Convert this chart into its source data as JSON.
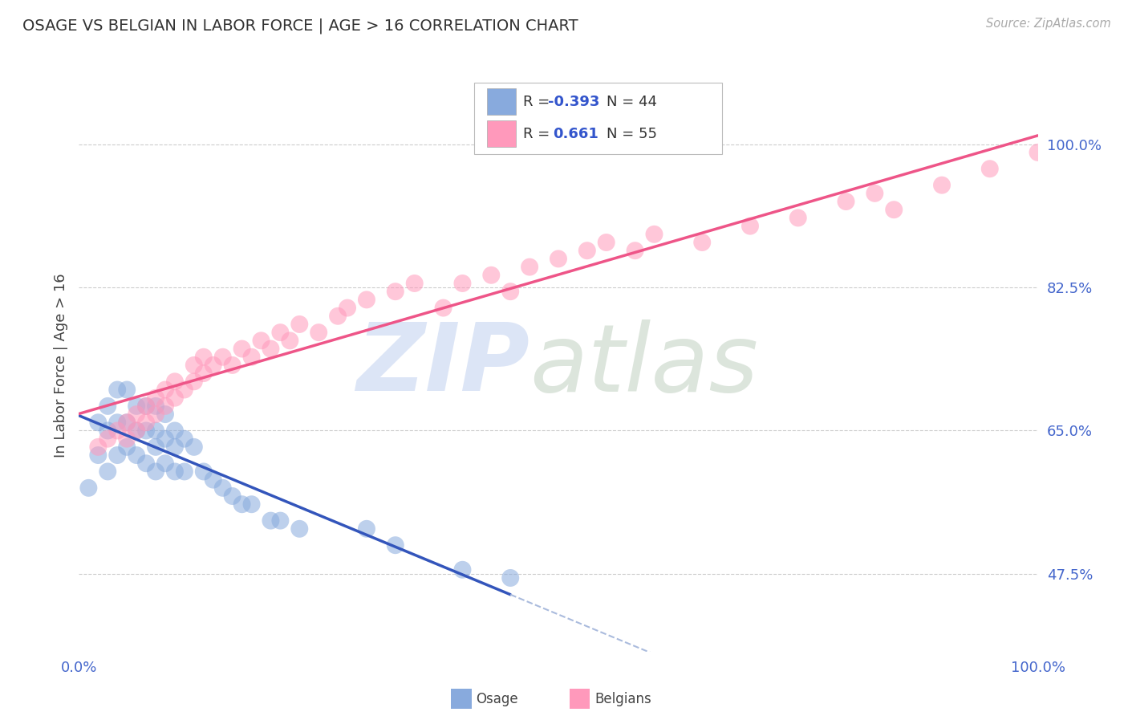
{
  "title": "OSAGE VS BELGIAN IN LABOR FORCE | AGE > 16 CORRELATION CHART",
  "source_text": "Source: ZipAtlas.com",
  "ylabel": "In Labor Force | Age > 16",
  "osage_r": "-0.393",
  "osage_n": "44",
  "belgian_r": "0.661",
  "belgian_n": "55",
  "osage_color": "#88AADD",
  "belgian_color": "#FF99BB",
  "osage_line_color": "#3355BB",
  "belgian_line_color": "#EE5588",
  "osage_dash_color": "#AABBDD",
  "bg_color": "#FFFFFF",
  "grid_color": "#CCCCCC",
  "title_color": "#333333",
  "tick_color": "#4466CC",
  "source_color": "#AAAAAA",
  "r_value_color": "#3355CC",
  "legend_text_color": "#333333",
  "watermark_zip_color": "#BBCCEE",
  "watermark_atlas_color": "#BBCCBB",
  "xlim": [
    0.0,
    1.0
  ],
  "ylim": [
    0.38,
    1.08
  ],
  "ytick_vals": [
    0.475,
    0.65,
    0.825,
    1.0
  ],
  "ytick_labels": [
    "47.5%",
    "65.0%",
    "82.5%",
    "100.0%"
  ],
  "xtick_vals": [
    0.0,
    1.0
  ],
  "xtick_labels": [
    "0.0%",
    "100.0%"
  ],
  "osage_x": [
    0.01,
    0.02,
    0.02,
    0.03,
    0.03,
    0.03,
    0.04,
    0.04,
    0.04,
    0.05,
    0.05,
    0.05,
    0.06,
    0.06,
    0.06,
    0.07,
    0.07,
    0.07,
    0.08,
    0.08,
    0.08,
    0.08,
    0.09,
    0.09,
    0.09,
    0.1,
    0.1,
    0.1,
    0.11,
    0.11,
    0.12,
    0.13,
    0.14,
    0.15,
    0.16,
    0.17,
    0.18,
    0.2,
    0.21,
    0.23,
    0.3,
    0.33,
    0.4,
    0.45
  ],
  "osage_y": [
    0.58,
    0.66,
    0.62,
    0.68,
    0.65,
    0.6,
    0.7,
    0.66,
    0.62,
    0.7,
    0.66,
    0.63,
    0.68,
    0.65,
    0.62,
    0.68,
    0.65,
    0.61,
    0.68,
    0.65,
    0.63,
    0.6,
    0.67,
    0.64,
    0.61,
    0.65,
    0.63,
    0.6,
    0.64,
    0.6,
    0.63,
    0.6,
    0.59,
    0.58,
    0.57,
    0.56,
    0.56,
    0.54,
    0.54,
    0.53,
    0.53,
    0.51,
    0.48,
    0.47
  ],
  "belgian_x": [
    0.02,
    0.03,
    0.04,
    0.05,
    0.05,
    0.06,
    0.06,
    0.07,
    0.07,
    0.08,
    0.08,
    0.09,
    0.09,
    0.1,
    0.1,
    0.11,
    0.12,
    0.12,
    0.13,
    0.13,
    0.14,
    0.15,
    0.16,
    0.17,
    0.18,
    0.19,
    0.2,
    0.21,
    0.22,
    0.23,
    0.25,
    0.27,
    0.28,
    0.3,
    0.33,
    0.35,
    0.38,
    0.4,
    0.43,
    0.45,
    0.47,
    0.5,
    0.53,
    0.55,
    0.58,
    0.6,
    0.65,
    0.7,
    0.75,
    0.8,
    0.83,
    0.85,
    0.9,
    0.95,
    1.0
  ],
  "belgian_y": [
    0.63,
    0.64,
    0.65,
    0.64,
    0.66,
    0.65,
    0.67,
    0.66,
    0.68,
    0.67,
    0.69,
    0.68,
    0.7,
    0.69,
    0.71,
    0.7,
    0.71,
    0.73,
    0.72,
    0.74,
    0.73,
    0.74,
    0.73,
    0.75,
    0.74,
    0.76,
    0.75,
    0.77,
    0.76,
    0.78,
    0.77,
    0.79,
    0.8,
    0.81,
    0.82,
    0.83,
    0.8,
    0.83,
    0.84,
    0.82,
    0.85,
    0.86,
    0.87,
    0.88,
    0.87,
    0.89,
    0.88,
    0.9,
    0.91,
    0.93,
    0.94,
    0.92,
    0.95,
    0.97,
    0.99
  ]
}
